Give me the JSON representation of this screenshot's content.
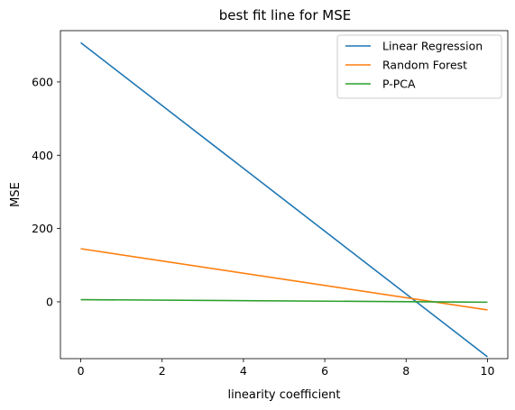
{
  "chart_data": {
    "type": "line",
    "title": "best fit line for MSE",
    "xlabel": "linearity coefficient",
    "ylabel": "MSE",
    "xlim": [
      -0.5,
      10.5
    ],
    "ylim": [
      -155,
      740
    ],
    "xticks": [
      0,
      2,
      4,
      6,
      8,
      10
    ],
    "yticks": [
      0,
      200,
      400,
      600
    ],
    "grid": false,
    "legend": "top-right",
    "series": [
      {
        "name": "Linear Regression",
        "color": "#1f77b4",
        "x": [
          0,
          10
        ],
        "y": [
          707,
          -150
        ]
      },
      {
        "name": "Random Forest",
        "color": "#ff7f0e",
        "x": [
          0,
          10
        ],
        "y": [
          145,
          -22
        ]
      },
      {
        "name": "P-PCA",
        "color": "#2ca02c",
        "x": [
          0,
          10
        ],
        "y": [
          6,
          -1
        ]
      }
    ]
  }
}
